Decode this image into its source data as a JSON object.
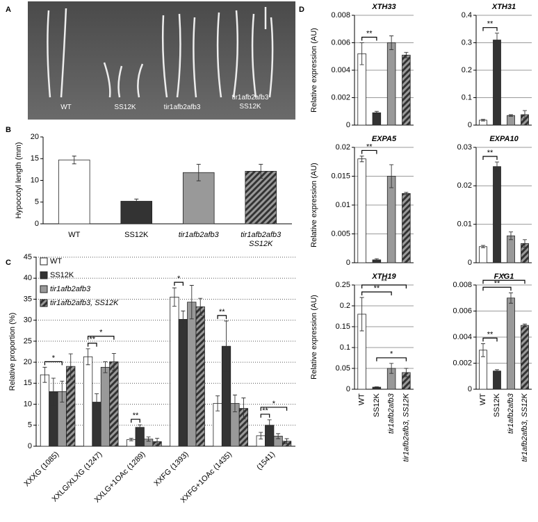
{
  "panel_labels": [
    "A",
    "B",
    "C",
    "D"
  ],
  "photo": {
    "labels": [
      "WT",
      "SS12K",
      "tir1afb2afb3",
      "tir1afb2afb3\nSS12K"
    ]
  },
  "chart_data": [
    {
      "type": "bar",
      "ylabel": "Hypocotyl length (mm)",
      "categories": [
        "WT",
        "SS12K",
        "tir1afb2afb3",
        "tir1afb2afb3\nSS12K"
      ],
      "values": [
        14.7,
        5.2,
        11.8,
        12.1
      ],
      "errors": [
        0.9,
        0.5,
        1.9,
        1.6
      ],
      "colors": [
        "#ffffff",
        "#333333",
        "#999999",
        "#444444"
      ],
      "hatched": [
        false,
        false,
        false,
        true
      ],
      "ylim": [
        0,
        20
      ],
      "yticks": [
        0,
        5,
        10,
        15,
        20
      ],
      "grid": false
    },
    {
      "type": "grouped_bar",
      "ylabel": "Relative proportion (%)",
      "categories": [
        "XXXG (1085)",
        "XXLG/XLXG (1247)",
        "XXLG+1OAc (1289)",
        "XXFG (1393)",
        "XXFG+1OAc (1435)",
        "(1541)"
      ],
      "series": [
        {
          "name": "WT",
          "color": "#ffffff",
          "hatched": false,
          "values": [
            17,
            21.3,
            1.6,
            35.5,
            10.2,
            2.5
          ],
          "errors": [
            1.8,
            1.9,
            0.3,
            2.2,
            1.8,
            0.8
          ]
        },
        {
          "name": "SS12K",
          "color": "#333333",
          "hatched": false,
          "values": [
            13,
            10.5,
            4.5,
            30.2,
            23.8,
            5.0
          ],
          "errors": [
            3.2,
            2,
            0.6,
            2,
            6,
            1.3
          ]
        },
        {
          "name": "tir1afb2afb3",
          "color": "#999999",
          "hatched": false,
          "values": [
            13,
            18.8,
            1.7,
            34.3,
            10.2,
            2.4
          ],
          "errors": [
            2.5,
            1.3,
            0.5,
            4,
            2,
            0.6
          ]
        },
        {
          "name": "tir1afb2afb3, SS12K",
          "color": "#444444",
          "hatched": true,
          "values": [
            19,
            20.1,
            1.1,
            33.2,
            9,
            1.2
          ],
          "errors": [
            3,
            2,
            0.8,
            2,
            2.5,
            0.6
          ]
        }
      ],
      "annotations": [
        {
          "text": "*",
          "category": 0,
          "series": [
            0,
            2
          ]
        },
        {
          "text": "**",
          "category": 1,
          "series": [
            0,
            1
          ]
        },
        {
          "text": "*",
          "category": 1,
          "series": [
            0,
            3
          ]
        },
        {
          "text": "**",
          "category": 2,
          "series": [
            0,
            1
          ]
        },
        {
          "text": "*",
          "category": 3,
          "series": [
            0,
            1
          ]
        },
        {
          "text": "**",
          "category": 4,
          "series": [
            0,
            1
          ]
        },
        {
          "text": "**",
          "category": 5,
          "series": [
            0,
            1
          ]
        },
        {
          "text": "*",
          "category": 5,
          "series": [
            0,
            3
          ]
        }
      ],
      "legend": "upper left",
      "ylim": [
        0,
        45
      ],
      "yticks": [
        0,
        5,
        10,
        15,
        20,
        25,
        30,
        35,
        40,
        45
      ],
      "grid": true,
      "grid_style": "dotted"
    },
    {
      "type": "bar",
      "title": "XTH33",
      "ylabel": "Relative expression (AU)",
      "values": [
        0.0052,
        0.0009,
        0.006,
        0.0051
      ],
      "errors": [
        0.0008,
        0.0001,
        0.0005,
        0.0002
      ],
      "colors": [
        "#ffffff",
        "#333333",
        "#999999",
        "#444444"
      ],
      "hatched": [
        false,
        false,
        false,
        true
      ],
      "annotations": [
        {
          "text": "**",
          "bars": [
            0,
            1
          ]
        }
      ],
      "ylim": [
        0,
        0.008
      ],
      "yticks": [
        0,
        0.002,
        0.004,
        0.006,
        0.008
      ],
      "grid": true,
      "grid_style": "solid"
    },
    {
      "type": "bar",
      "title": "XTH31",
      "values": [
        0.018,
        0.31,
        0.035,
        0.038
      ],
      "errors": [
        0.003,
        0.025,
        0.003,
        0.015
      ],
      "colors": [
        "#ffffff",
        "#333333",
        "#999999",
        "#444444"
      ],
      "hatched": [
        false,
        false,
        false,
        true
      ],
      "annotations": [
        {
          "text": "**",
          "bars": [
            0,
            1
          ]
        }
      ],
      "ylim": [
        0,
        0.4
      ],
      "yticks": [
        0,
        0.1,
        0.2,
        0.3,
        0.4
      ],
      "grid": true,
      "grid_style": "solid"
    },
    {
      "type": "bar",
      "title": "EXPA5",
      "ylabel": "Relative expression (AU)",
      "values": [
        0.018,
        0.0005,
        0.015,
        0.012
      ],
      "errors": [
        0.0005,
        0.0002,
        0.002,
        0.0002
      ],
      "colors": [
        "#ffffff",
        "#333333",
        "#999999",
        "#444444"
      ],
      "hatched": [
        false,
        false,
        false,
        true
      ],
      "annotations": [
        {
          "text": "**",
          "bars": [
            0,
            1
          ]
        }
      ],
      "ylim": [
        0,
        0.02
      ],
      "yticks": [
        0,
        0.005,
        0.01,
        0.015,
        0.02
      ],
      "grid": true,
      "grid_style": "solid"
    },
    {
      "type": "bar",
      "title": "EXPA10",
      "values": [
        0.0042,
        0.025,
        0.007,
        0.005
      ],
      "errors": [
        0.0003,
        0.0012,
        0.001,
        0.001
      ],
      "colors": [
        "#ffffff",
        "#333333",
        "#999999",
        "#444444"
      ],
      "hatched": [
        false,
        false,
        false,
        true
      ],
      "annotations": [
        {
          "text": "**",
          "bars": [
            0,
            1
          ]
        }
      ],
      "ylim": [
        0,
        0.03
      ],
      "yticks": [
        0,
        0.01,
        0.02,
        0.03
      ],
      "grid": true,
      "grid_style": "solid"
    },
    {
      "type": "bar",
      "title": "XTH19",
      "ylabel": "Relative expression (AU)",
      "categories": [
        "WT",
        "SS12K",
        "tir1afb2afb3",
        "tir1afb2afb3, SS12K"
      ],
      "values": [
        0.18,
        0.005,
        0.05,
        0.04
      ],
      "errors": [
        0.04,
        0.001,
        0.012,
        0.01
      ],
      "colors": [
        "#ffffff",
        "#333333",
        "#999999",
        "#444444"
      ],
      "hatched": [
        false,
        false,
        false,
        true
      ],
      "annotations": [
        {
          "text": "*",
          "bars": [
            1,
            3
          ]
        },
        {
          "text": "**",
          "bars": [
            0,
            2
          ]
        },
        {
          "text": "**",
          "bars": [
            0,
            3
          ]
        }
      ],
      "ylim": [
        0,
        0.25
      ],
      "yticks": [
        0,
        0.05,
        0.1,
        0.15,
        0.2,
        0.25
      ],
      "grid": true,
      "grid_style": "solid"
    },
    {
      "type": "bar",
      "title": "FXG1",
      "categories": [
        "WT",
        "SS12K",
        "tir1afb2afb3",
        "tir1afb2afb3, SS12K"
      ],
      "values": [
        0.003,
        0.0014,
        0.007,
        0.0049
      ],
      "errors": [
        0.0005,
        0.0001,
        0.0004,
        0.0001
      ],
      "colors": [
        "#ffffff",
        "#333333",
        "#999999",
        "#444444"
      ],
      "hatched": [
        false,
        false,
        false,
        true
      ],
      "annotations": [
        {
          "text": "**",
          "bars": [
            0,
            1
          ]
        },
        {
          "text": "**",
          "bars": [
            0,
            2
          ]
        },
        {
          "text": "*",
          "bars": [
            0,
            3
          ]
        }
      ],
      "ylim": [
        0,
        0.008
      ],
      "yticks": [
        0,
        0.002,
        0.004,
        0.006,
        0.008
      ],
      "grid": true,
      "grid_style": "solid"
    }
  ]
}
